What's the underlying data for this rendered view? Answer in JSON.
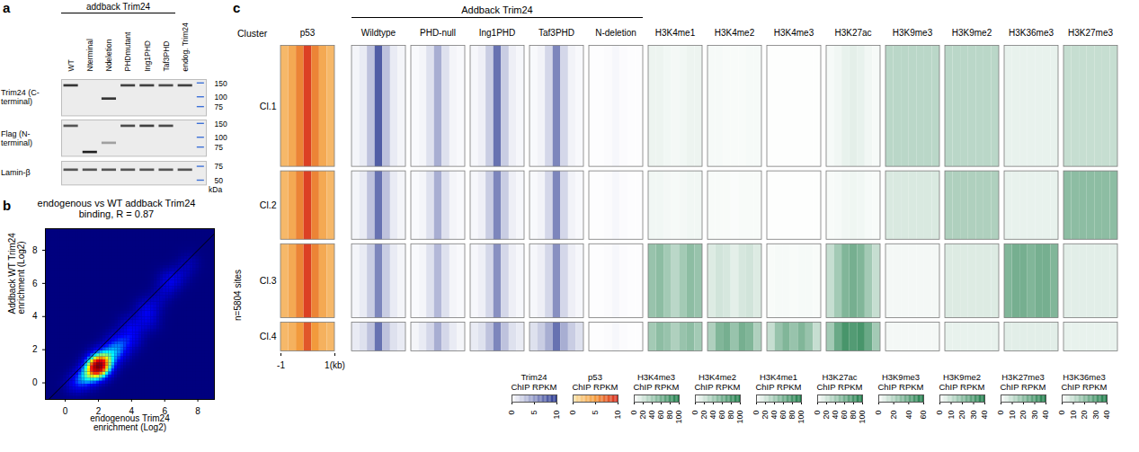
{
  "blot": {
    "letter": "a",
    "header": {
      "label": "addback Trim24",
      "lanes": [
        "WT",
        "Nterminal",
        "Ndeletion",
        "PHDmutant",
        "Ing1PHD",
        "Taf3PHD"
      ]
    },
    "lanes": [
      "WT",
      "Nterminal",
      "Ndeletion",
      "PHDmutant",
      "Ing1PHD",
      "Taf3PHD",
      "endog. Trim24"
    ],
    "unit": "kDa",
    "strips": [
      {
        "label": "Trim24 (C-terminal)",
        "ylim": [
          58,
          168
        ],
        "yticks": [
          150,
          100,
          75
        ],
        "bands": [
          {
            "lane": "WT",
            "kDa": 140,
            "intensity": 0.85
          },
          {
            "lane": "Ndeletion",
            "kDa": 95,
            "intensity": 0.85
          },
          {
            "lane": "PHDmutant",
            "kDa": 140,
            "intensity": 0.8
          },
          {
            "lane": "Ing1PHD",
            "kDa": 140,
            "intensity": 0.8
          },
          {
            "lane": "Taf3PHD",
            "kDa": 140,
            "intensity": 0.75
          },
          {
            "lane": "endog. Trim24",
            "kDa": 140,
            "intensity": 0.8
          }
        ]
      },
      {
        "label": "Flag (N-terminal)",
        "ylim": [
          58,
          168
        ],
        "yticks": [
          150,
          100,
          75
        ],
        "bands": [
          {
            "lane": "WT",
            "kDa": 140,
            "intensity": 0.7
          },
          {
            "lane": "Nterminal",
            "kDa": 65,
            "intensity": 0.95
          },
          {
            "lane": "Ndeletion",
            "kDa": 85,
            "intensity": 0.35
          },
          {
            "lane": "PHDmutant",
            "kDa": 140,
            "intensity": 0.75
          },
          {
            "lane": "Ing1PHD",
            "kDa": 140,
            "intensity": 0.8
          },
          {
            "lane": "Taf3PHD",
            "kDa": 140,
            "intensity": 0.75
          }
        ]
      },
      {
        "label": "Lamin-β",
        "ylim": [
          44,
          88
        ],
        "yticks": [
          75,
          50
        ],
        "bands": [
          {
            "lane": "WT",
            "kDa": 68,
            "intensity": 0.7
          },
          {
            "lane": "Nterminal",
            "kDa": 68,
            "intensity": 0.7
          },
          {
            "lane": "Ndeletion",
            "kDa": 68,
            "intensity": 0.7
          },
          {
            "lane": "PHDmutant",
            "kDa": 68,
            "intensity": 0.7
          },
          {
            "lane": "Ing1PHD",
            "kDa": 68,
            "intensity": 0.7
          },
          {
            "lane": "Taf3PHD",
            "kDa": 68,
            "intensity": 0.7
          },
          {
            "lane": "endog. Trim24",
            "kDa": 68,
            "intensity": 0.7
          }
        ]
      }
    ]
  },
  "chart_data": [
    {
      "letter": "b",
      "type": "density",
      "title": "endogenous vs WT addback Trim24 binding, R = 0.87",
      "x_label": "endogenous Trim24 enrichment (Log2)",
      "y_label": "Addback WT Trim24 enrichment (Log2)",
      "x": [
        1.5,
        2,
        2.2,
        1.8,
        2.5,
        1.2,
        1,
        0.8,
        2.8,
        3,
        3.3,
        3.6,
        4,
        4.5,
        5,
        5.5,
        6,
        6.5,
        7,
        2.1,
        1.9,
        2.3,
        1.6,
        2.6,
        2.4,
        1.4,
        0.5,
        3.5,
        3,
        4.2,
        4.8,
        2,
        2,
        1.7,
        2.7,
        3.8,
        5.2,
        6.2,
        7.5,
        2.1,
        2,
        1.95,
        2.15,
        1.85
      ],
      "y": [
        0.6,
        1,
        1.1,
        0.8,
        1.3,
        0.4,
        0.2,
        0,
        1.6,
        1.8,
        2.2,
        2.5,
        3,
        3.5,
        4.2,
        4.8,
        5.5,
        6,
        6.5,
        0.9,
        1.2,
        0.8,
        1,
        1,
        1.6,
        0.2,
        -0.2,
        1.8,
        2.6,
        2.5,
        4.5,
        0.5,
        1.5,
        0.5,
        1.9,
        3.5,
        3.6,
        6.3,
        7.2,
        1,
        1.05,
        0.95,
        1.1,
        0.9
      ],
      "xlim": [
        -1.2,
        9
      ],
      "xticks": [
        0,
        2,
        4,
        6,
        8
      ],
      "ylim": [
        -1,
        9.3
      ],
      "yticks": [
        0,
        2,
        4,
        6,
        8
      ]
    },
    {
      "letter": "c",
      "type": "heatmap",
      "header": {
        "label": "Addback Trim24",
        "columns": [
          "Wildtype",
          "PHD-null",
          "Ing1PHD",
          "Taf3PHD",
          "N-deletion"
        ]
      },
      "cluster_header": "Cluster",
      "n_label": "n=5804 sites",
      "clusters": [
        {
          "name": "Cl.1",
          "sites": 2349
        },
        {
          "name": "Cl.2",
          "sites": 1365
        },
        {
          "name": "Cl.3",
          "sites": 1468
        },
        {
          "name": "Cl.4",
          "sites": 622
        }
      ],
      "bins": [
        -1,
        -0.714,
        -0.429,
        -0.143,
        0.143,
        0.429,
        0.714,
        1
      ],
      "xlim": [
        -1,
        1
      ],
      "xticks": [
        {
          "value": -1,
          "label": "-1"
        },
        {
          "value": 1,
          "label": "1(kb)"
        }
      ],
      "colorbars": [
        {
          "title": "Trim24 ChIP RPKM",
          "range": [
            0,
            10
          ],
          "ticks": [
            0,
            5,
            10
          ],
          "colors": [
            "#ffffff",
            "#26358f"
          ]
        },
        {
          "title": "p53 ChIP RPKM",
          "range": [
            0,
            10
          ],
          "ticks": [
            0,
            5,
            10
          ],
          "colors": [
            "#fbe6ad",
            "#f29a3c",
            "#d62a1e"
          ]
        },
        {
          "title": "H3K4me3 ChIP RPKM",
          "range": [
            0,
            100
          ],
          "ticks": [
            0,
            20,
            40,
            60,
            80,
            100
          ],
          "colors": [
            "#ffffff",
            "#1a7a46"
          ]
        },
        {
          "title": "H3K4me2 ChIP RPKM",
          "range": [
            0,
            100
          ],
          "ticks": [
            0,
            20,
            40,
            60,
            80,
            100
          ],
          "colors": [
            "#ffffff",
            "#1a7a46"
          ]
        },
        {
          "title": "H3K4me1 ChIP RPKM",
          "range": [
            0,
            100
          ],
          "ticks": [
            0,
            20,
            40,
            60,
            80,
            100
          ],
          "colors": [
            "#ffffff",
            "#1a7a46"
          ]
        },
        {
          "title": "H3K27ac ChIP RPKM",
          "range": [
            0,
            100
          ],
          "ticks": [
            0,
            20,
            40,
            60,
            80,
            100
          ],
          "colors": [
            "#ffffff",
            "#1a7a46"
          ]
        },
        {
          "title": "H3K9me3 ChIP RPKM",
          "range": [
            0,
            60
          ],
          "ticks": [
            0,
            20,
            40,
            60
          ],
          "colors": [
            "#ffffff",
            "#1a7a46"
          ]
        },
        {
          "title": "H3K9me2 ChIP RPKM",
          "range": [
            0,
            40
          ],
          "ticks": [
            0,
            10,
            20,
            30,
            40
          ],
          "colors": [
            "#ffffff",
            "#1a7a46"
          ]
        },
        {
          "title": "H3K27me3 ChIP RPKM",
          "range": [
            0,
            40
          ],
          "ticks": [
            0,
            10,
            20,
            30,
            40
          ],
          "colors": [
            "#ffffff",
            "#1a7a46"
          ]
        },
        {
          "title": "H3K36me3 ChIP RPKM",
          "range": [
            0,
            40
          ],
          "ticks": [
            0,
            10,
            20,
            30,
            40
          ],
          "colors": [
            "#ffffff",
            "#1a7a46"
          ]
        }
      ],
      "columns": [
        {
          "name": "p53",
          "colorbar": "p53 ChIP RPKM",
          "values": [
            [
              3,
              4,
              6,
              9,
              6,
              4,
              3
            ],
            [
              3,
              4,
              6,
              9,
              6,
              4,
              3
            ],
            [
              3,
              4,
              6,
              9,
              6,
              4,
              3
            ],
            [
              3,
              3.5,
              5,
              8,
              5,
              3.5,
              3
            ]
          ]
        },
        {
          "name": "Wildtype",
          "colorbar": "Trim24 ChIP RPKM",
          "values": [
            [
              0.5,
              1,
              3,
              8,
              3,
              1,
              0.5
            ],
            [
              0.5,
              1,
              3,
              7,
              3,
              1,
              0.5
            ],
            [
              0.5,
              1,
              2.5,
              6,
              2.5,
              1,
              0.5
            ],
            [
              1,
              1.5,
              3,
              7,
              3,
              1.5,
              1
            ]
          ]
        },
        {
          "name": "PHD-null",
          "colorbar": "Trim24 ChIP RPKM",
          "values": [
            [
              0.3,
              0.5,
              1.5,
              4,
              1.5,
              0.5,
              0.3
            ],
            [
              0.3,
              0.5,
              1.5,
              4,
              1.5,
              0.5,
              0.3
            ],
            [
              0.3,
              0.5,
              1.5,
              3.5,
              1.5,
              0.5,
              0.3
            ],
            [
              0.5,
              1,
              2,
              4,
              2,
              1,
              0.5
            ]
          ]
        },
        {
          "name": "Ing1PHD",
          "colorbar": "Trim24 ChIP RPKM",
          "values": [
            [
              0.4,
              0.8,
              2.5,
              7,
              2.5,
              0.8,
              0.4
            ],
            [
              0.4,
              0.8,
              2.5,
              6,
              2.5,
              0.8,
              0.4
            ],
            [
              0.4,
              0.8,
              2,
              5.5,
              2,
              0.8,
              0.4
            ],
            [
              1,
              1.5,
              3,
              6,
              3,
              1.5,
              1
            ]
          ]
        },
        {
          "name": "Taf3PHD",
          "colorbar": "Trim24 ChIP RPKM",
          "values": [
            [
              0.3,
              0.6,
              2,
              6,
              2,
              0.6,
              0.3
            ],
            [
              0.3,
              0.6,
              2,
              6,
              2,
              0.6,
              0.3
            ],
            [
              0.4,
              0.8,
              2,
              5.5,
              2,
              0.8,
              0.4
            ],
            [
              1.5,
              2.5,
              4,
              7,
              4,
              2.5,
              1.5
            ]
          ]
        },
        {
          "name": "N-deletion",
          "colorbar": "Trim24 ChIP RPKM",
          "values": [
            [
              0.1,
              0.1,
              0.2,
              0.4,
              0.2,
              0.1,
              0.1
            ],
            [
              0.1,
              0.1,
              0.2,
              0.4,
              0.2,
              0.1,
              0.1
            ],
            [
              0.1,
              0.1,
              0.2,
              0.4,
              0.2,
              0.1,
              0.1
            ],
            [
              0.1,
              0.1,
              0.2,
              0.4,
              0.2,
              0.1,
              0.1
            ]
          ]
        },
        {
          "name": "H3K4me1",
          "colorbar": "H3K4me1 ChIP RPKM",
          "values": [
            [
              8,
              8,
              6,
              5,
              6,
              8,
              8
            ],
            [
              6,
              6,
              5,
              4,
              5,
              6,
              6
            ],
            [
              45,
              50,
              40,
              30,
              40,
              50,
              45
            ],
            [
              40,
              50,
              45,
              35,
              45,
              50,
              40
            ]
          ]
        },
        {
          "name": "H3K4me2",
          "colorbar": "H3K4me2 ChIP RPKM",
          "values": [
            [
              4,
              4,
              3,
              3,
              3,
              4,
              4
            ],
            [
              3,
              3,
              3,
              2,
              3,
              3,
              3
            ],
            [
              15,
              20,
              18,
              12,
              18,
              20,
              15
            ],
            [
              35,
              55,
              60,
              45,
              60,
              55,
              35
            ]
          ]
        },
        {
          "name": "H3K4me3",
          "colorbar": "H3K4me3 ChIP RPKM",
          "values": [
            [
              1,
              1,
              1,
              1,
              1,
              1,
              1
            ],
            [
              1,
              1,
              1,
              1,
              1,
              1,
              1
            ],
            [
              3,
              4,
              4,
              3,
              4,
              4,
              3
            ],
            [
              25,
              45,
              55,
              45,
              55,
              45,
              25
            ]
          ]
        },
        {
          "name": "H3K27ac",
          "colorbar": "H3K27ac ChIP RPKM",
          "values": [
            [
              4,
              6,
              10,
              12,
              10,
              6,
              4
            ],
            [
              3,
              4,
              6,
              7,
              6,
              4,
              3
            ],
            [
              25,
              40,
              55,
              60,
              55,
              40,
              25
            ],
            [
              40,
              65,
              80,
              75,
              80,
              65,
              40
            ]
          ]
        },
        {
          "name": "H3K9me3",
          "colorbar": "H3K9me3 ChIP RPKM",
          "values": [
            [
              18,
              18,
              18,
              18,
              18,
              18,
              18
            ],
            [
              10,
              10,
              10,
              10,
              10,
              10,
              10
            ],
            [
              3,
              3,
              3,
              3,
              3,
              3,
              3
            ],
            [
              3,
              3,
              3,
              3,
              3,
              3,
              3
            ]
          ]
        },
        {
          "name": "H3K9me2",
          "colorbar": "H3K9me2 ChIP RPKM",
          "values": [
            [
              12,
              12,
              12,
              12,
              12,
              12,
              12
            ],
            [
              14,
              14,
              14,
              14,
              14,
              14,
              14
            ],
            [
              6,
              6,
              6,
              6,
              6,
              6,
              6
            ],
            [
              4,
              4,
              4,
              4,
              4,
              4,
              4
            ]
          ]
        },
        {
          "name": "H3K36me3",
          "colorbar": "H3K36me3 ChIP RPKM",
          "values": [
            [
              4,
              4,
              4,
              4,
              4,
              4,
              4
            ],
            [
              4,
              4,
              4,
              4,
              4,
              4,
              4
            ],
            [
              22,
              24,
              24,
              22,
              24,
              24,
              22
            ],
            [
              5,
              5,
              5,
              5,
              5,
              5,
              5
            ]
          ]
        },
        {
          "name": "H3K27me3",
          "colorbar": "H3K27me3 ChIP RPKM",
          "values": [
            [
              10,
              10,
              10,
              10,
              10,
              10,
              10
            ],
            [
              20,
              20,
              20,
              20,
              20,
              20,
              20
            ],
            [
              5,
              5,
              5,
              5,
              5,
              5,
              5
            ],
            [
              4,
              4,
              4,
              4,
              4,
              4,
              4
            ]
          ]
        }
      ]
    }
  ]
}
